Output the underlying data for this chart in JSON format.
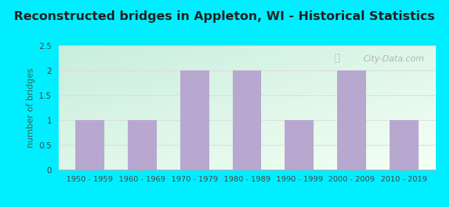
{
  "title": "Reconstructed bridges in Appleton, WI - Historical Statistics",
  "categories": [
    "1950 - 1959",
    "1960 - 1969",
    "1970 - 1979",
    "1980 - 1989",
    "1990 - 1999",
    "2000 - 2009",
    "2010 - 2019"
  ],
  "values": [
    1,
    1,
    2,
    2,
    1,
    2,
    1
  ],
  "bar_color": "#b8a8d0",
  "ylabel": "number of bridges",
  "ylim": [
    0,
    2.5
  ],
  "yticks": [
    0,
    0.5,
    1,
    1.5,
    2,
    2.5
  ],
  "background_color": "#00EEFF",
  "plot_bg_colors": [
    "#c8eedd",
    "#f0faf0"
  ],
  "title_fontsize": 13,
  "title_color": "#222222",
  "axis_label_color": "#336655",
  "tick_label_color": "#444444",
  "grid_color": "#dddddd",
  "watermark_text": "City-Data.com",
  "watermark_color": "#aaaaaa"
}
